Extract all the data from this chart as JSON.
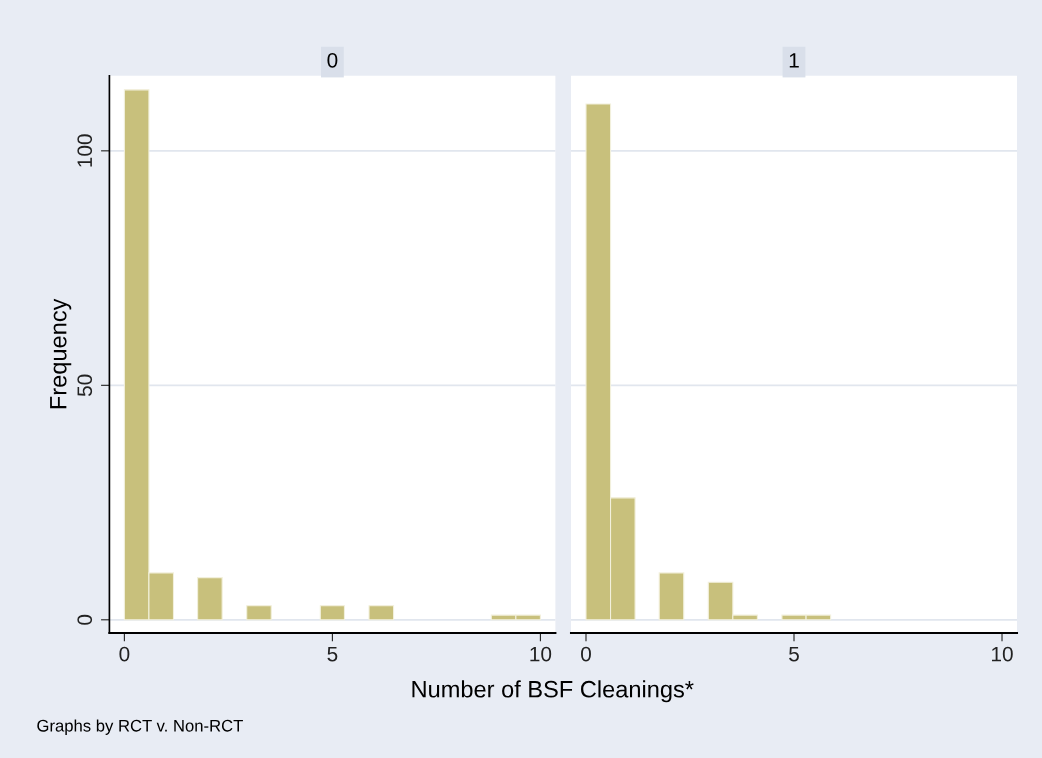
{
  "chart_data": [
    {
      "type": "histogram",
      "title": "0",
      "ylabel": "Frequency",
      "xlabel": "Number of BSF Cleanings*",
      "bins": [
        0,
        0.59,
        1.18,
        1.76,
        2.35,
        2.94,
        3.53,
        4.12,
        4.71,
        5.29,
        5.88,
        6.47,
        7.06,
        7.65,
        8.24,
        8.82,
        9.41,
        10
      ],
      "values": [
        113,
        10,
        0,
        9,
        0,
        3,
        0,
        0,
        3,
        0,
        3,
        0,
        0,
        0,
        0,
        1,
        1
      ],
      "color": "#c8c07c",
      "xlim": [
        -0.36,
        10.36
      ],
      "xticks": [
        0,
        5,
        10
      ],
      "ylim": [
        -2.8,
        116
      ],
      "yticks": [
        0,
        50,
        100
      ],
      "grid": "y",
      "annotations": [
        "Graphs by RCT v. Non-RCT"
      ]
    },
    {
      "type": "histogram",
      "title": "1",
      "bins": [
        0,
        0.59,
        1.18,
        1.76,
        2.35,
        2.94,
        3.53,
        4.12,
        4.71,
        5.29,
        5.88,
        6.47,
        7.06,
        7.65,
        8.24,
        8.82,
        9.41,
        10
      ],
      "values": [
        110,
        26,
        0,
        10,
        0,
        8,
        1,
        0,
        1,
        1,
        0,
        0,
        0,
        0,
        0,
        0,
        0
      ],
      "color": "#c8c07c",
      "xlim": [
        -0.36,
        10.36
      ],
      "xticks": [
        0,
        5,
        10
      ],
      "ylim": [
        -2.8,
        116
      ],
      "yticks": [
        0,
        50,
        100
      ],
      "grid": "y",
      "tick_labels": "x"
    }
  ]
}
